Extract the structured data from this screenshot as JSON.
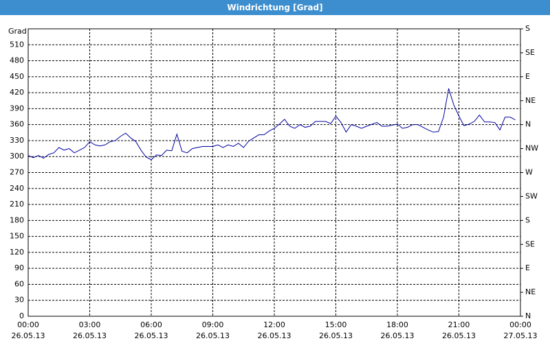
{
  "chart_data": {
    "type": "line",
    "title": "Windrichtung [Grad]",
    "y_label": "Grad",
    "x": [
      0,
      0.25,
      0.5,
      0.75,
      1,
      1.25,
      1.5,
      1.75,
      2,
      2.25,
      2.5,
      2.75,
      3,
      3.25,
      3.5,
      3.75,
      4,
      4.25,
      4.5,
      4.75,
      5,
      5.25,
      5.5,
      5.75,
      6,
      6.25,
      6.5,
      6.75,
      7,
      7.25,
      7.5,
      7.75,
      8,
      8.5,
      9,
      9.25,
      9.5,
      9.75,
      10,
      10.25,
      10.5,
      10.75,
      11,
      11.25,
      11.5,
      11.75,
      12,
      12.25,
      12.5,
      12.75,
      13,
      13.25,
      13.5,
      13.75,
      14,
      14.5,
      14.75,
      15,
      15.25,
      15.5,
      15.75,
      16,
      16.25,
      16.5,
      17,
      17.25,
      17.5,
      18,
      18.25,
      18.5,
      18.75,
      19,
      19.25,
      19.5,
      19.75,
      20,
      20.25,
      20.5,
      20.75,
      21,
      21.25,
      21.5,
      21.75,
      22,
      22.25,
      22.5,
      22.75,
      23,
      23.25,
      23.5,
      23.75
    ],
    "series": [
      {
        "name": "Windrichtung",
        "color": "#0000a0",
        "values": [
          302,
          298,
          302,
          297,
          304,
          307,
          317,
          312,
          315,
          307,
          312,
          317,
          328,
          322,
          320,
          322,
          328,
          330,
          338,
          344,
          335,
          328,
          312,
          299,
          294,
          303,
          302,
          312,
          311,
          342,
          310,
          307,
          315,
          319,
          319,
          322,
          317,
          322,
          319,
          325,
          317,
          329,
          335,
          341,
          341,
          348,
          353,
          361,
          370,
          357,
          353,
          360,
          355,
          357,
          366,
          366,
          362,
          376,
          364,
          346,
          360,
          357,
          353,
          357,
          364,
          357,
          357,
          361,
          353,
          355,
          360,
          360,
          355,
          350,
          346,
          347,
          374,
          428,
          397,
          376,
          358,
          361,
          366,
          378,
          365,
          365,
          364,
          350,
          374,
          374,
          369
        ]
      }
    ],
    "xlim": [
      0,
      24
    ],
    "xticks": [
      {
        "value": 0,
        "label": "00:00"
      },
      {
        "value": 3,
        "label": "03:00"
      },
      {
        "value": 6,
        "label": "06:00"
      },
      {
        "value": 9,
        "label": "09:00"
      },
      {
        "value": 12,
        "label": "12:00"
      },
      {
        "value": 15,
        "label": "15:00"
      },
      {
        "value": 18,
        "label": "18:00"
      },
      {
        "value": 21,
        "label": "21:00"
      },
      {
        "value": 24,
        "label": "00:00"
      }
    ],
    "xtick_dates": [
      "26.05.13",
      "26.05.13",
      "26.05.13",
      "26.05.13",
      "26.05.13",
      "26.05.13",
      "26.05.13",
      "26.05.13",
      "27.05.13"
    ],
    "ylim": [
      0,
      540
    ],
    "yticks": [
      0,
      30,
      60,
      90,
      120,
      150,
      180,
      210,
      240,
      270,
      300,
      330,
      360,
      390,
      420,
      450,
      480,
      510
    ],
    "y2lim": [
      0,
      540
    ],
    "y2ticks": [
      {
        "value": 0,
        "label": "N"
      },
      {
        "value": 45,
        "label": "NE"
      },
      {
        "value": 90,
        "label": "E"
      },
      {
        "value": 135,
        "label": "SE"
      },
      {
        "value": 180,
        "label": "S"
      },
      {
        "value": 225,
        "label": "SW"
      },
      {
        "value": 270,
        "label": "W"
      },
      {
        "value": 315,
        "label": "NW"
      },
      {
        "value": 360,
        "label": "N"
      },
      {
        "value": 405,
        "label": "NE"
      },
      {
        "value": 450,
        "label": "E"
      },
      {
        "value": 495,
        "label": "SE"
      },
      {
        "value": 540,
        "label": "S"
      }
    ],
    "grid": true
  }
}
